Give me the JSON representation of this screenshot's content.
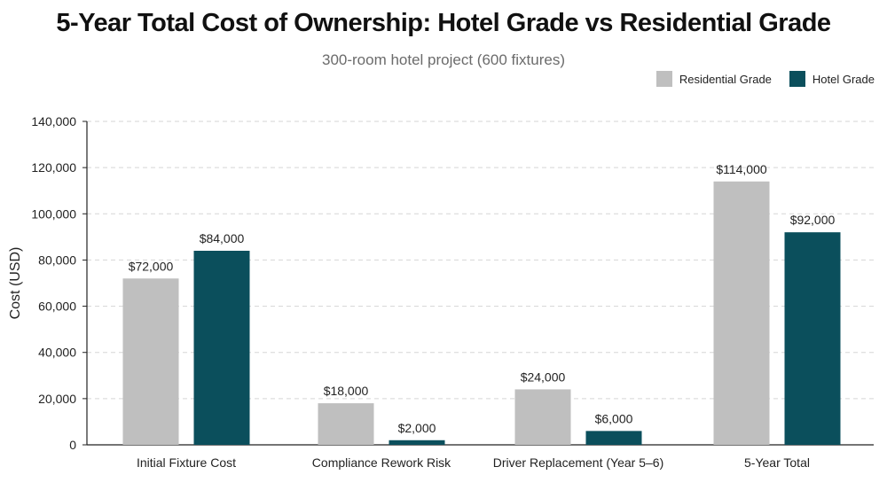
{
  "chart_data": {
    "type": "bar",
    "title": "5-Year Total Cost of Ownership: Hotel Grade vs Residential Grade",
    "subtitle": "300-room hotel project (600 fixtures)",
    "xlabel": "",
    "ylabel": "Cost (USD)",
    "ylim": [
      0,
      140000
    ],
    "yticks": [
      0,
      20000,
      40000,
      60000,
      80000,
      100000,
      120000,
      140000
    ],
    "ytick_labels": [
      "0",
      "20,000",
      "40,000",
      "60,000",
      "80,000",
      "100,000",
      "120,000",
      "140,000"
    ],
    "categories": [
      "Initial Fixture Cost",
      "Compliance Rework Risk",
      "Driver Replacement (Year 5–6)",
      "5-Year Total"
    ],
    "series": [
      {
        "name": "Residential Grade",
        "color": "#bfbfbf",
        "values": [
          72000,
          18000,
          24000,
          114000
        ],
        "labels": [
          "$72,000",
          "$18,000",
          "$24,000",
          "$114,000"
        ]
      },
      {
        "name": "Hotel Grade",
        "color": "#0b4f5c",
        "values": [
          84000,
          2000,
          6000,
          92000
        ],
        "labels": [
          "$84,000",
          "$2,000",
          "$6,000",
          "$92,000"
        ]
      }
    ],
    "grid": true,
    "legend_position": "top-right"
  }
}
